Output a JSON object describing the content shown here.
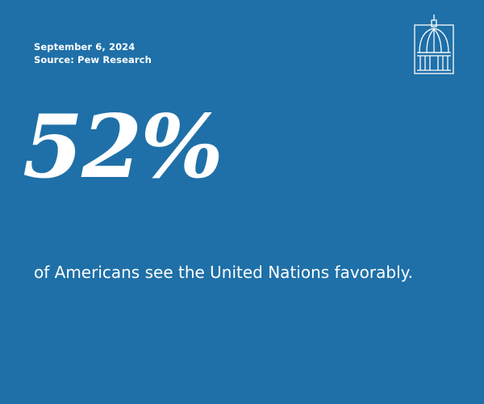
{
  "header": {
    "date": "September 6, 2024",
    "source": "Source: Pew Research"
  },
  "stat": {
    "figure": "52%",
    "caption": "of Americans see the United Nations favorably."
  }
}
